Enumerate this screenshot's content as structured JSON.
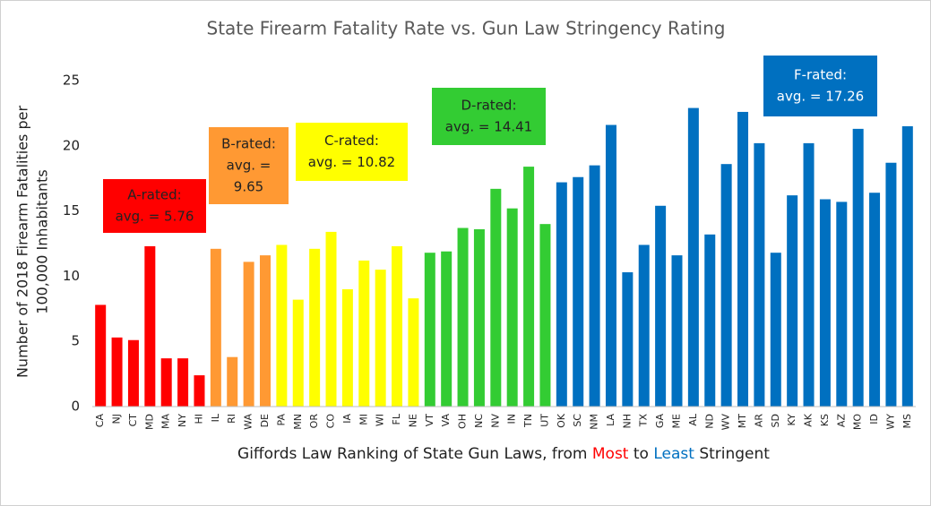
{
  "chart_data": {
    "type": "bar",
    "title": "State Firearm Fatality Rate vs. Gun Law Stringency Rating",
    "y_label": [
      "Number of 2018 Firearm Fatalities per",
      "100,000 Inhabitants"
    ],
    "x_label_parts": [
      {
        "text": "Giffords Law Ranking of State Gun Laws, from ",
        "color": "#222222"
      },
      {
        "text": "Most",
        "color": "#ff0000"
      },
      {
        "text": " to ",
        "color": "#222222"
      },
      {
        "text": "Least",
        "color": "#0070c0"
      },
      {
        "text": " Stringent",
        "color": "#222222"
      }
    ],
    "categories": [
      "CA",
      "NJ",
      "CT",
      "MD",
      "MA",
      "NY",
      "HI",
      "IL",
      "RI",
      "WA",
      "DE",
      "PA",
      "MN",
      "OR",
      "CO",
      "IA",
      "MI",
      "WI",
      "FL",
      "NE",
      "VT",
      "VA",
      "OH",
      "NC",
      "NV",
      "IN",
      "TN",
      "UT",
      "OK",
      "SC",
      "NM",
      "LA",
      "NH",
      "TX",
      "GA",
      "ME",
      "AL",
      "ND",
      "WV",
      "MT",
      "AR",
      "SD",
      "KY",
      "AK",
      "KS",
      "AZ",
      "MO",
      "ID",
      "WY",
      "MS"
    ],
    "values": [
      7.8,
      5.3,
      5.1,
      12.3,
      3.7,
      3.7,
      2.4,
      12.1,
      3.8,
      11.1,
      11.6,
      12.4,
      8.2,
      12.1,
      13.4,
      9.0,
      11.2,
      10.5,
      12.3,
      8.3,
      11.8,
      11.9,
      13.7,
      13.6,
      16.7,
      15.2,
      18.4,
      14.0,
      17.2,
      17.6,
      18.5,
      21.6,
      10.3,
      12.4,
      15.4,
      11.6,
      22.9,
      13.2,
      18.6,
      22.6,
      20.2,
      11.8,
      16.2,
      20.2,
      15.9,
      15.7,
      21.3,
      16.4,
      18.7,
      21.5
    ],
    "colors": [
      "#ff0000",
      "#ff0000",
      "#ff0000",
      "#ff0000",
      "#ff0000",
      "#ff0000",
      "#ff0000",
      "#ff9933",
      "#ff9933",
      "#ff9933",
      "#ff9933",
      "#ffff00",
      "#ffff00",
      "#ffff00",
      "#ffff00",
      "#ffff00",
      "#ffff00",
      "#ffff00",
      "#ffff00",
      "#ffff00",
      "#33cc33",
      "#33cc33",
      "#33cc33",
      "#33cc33",
      "#33cc33",
      "#33cc33",
      "#33cc33",
      "#33cc33",
      "#0070c0",
      "#0070c0",
      "#0070c0",
      "#0070c0",
      "#0070c0",
      "#0070c0",
      "#0070c0",
      "#0070c0",
      "#0070c0",
      "#0070c0",
      "#0070c0",
      "#0070c0",
      "#0070c0",
      "#0070c0",
      "#0070c0",
      "#0070c0",
      "#0070c0",
      "#0070c0",
      "#0070c0",
      "#0070c0",
      "#0070c0",
      "#0070c0"
    ],
    "ylim": [
      0,
      25
    ],
    "yticks": [
      0,
      5,
      10,
      15,
      20,
      25
    ],
    "grid": false,
    "annotations": [
      {
        "lines": [
          "A-rated:",
          "avg. = 5.76"
        ],
        "color": "#ff0000",
        "text_color": "#222222"
      },
      {
        "lines": [
          "B-rated:",
          "avg. =",
          "9.65"
        ],
        "color": "#ff9933",
        "text_color": "#222222"
      },
      {
        "lines": [
          "C-rated:",
          "avg. = 10.82"
        ],
        "color": "#ffff00",
        "text_color": "#222222"
      },
      {
        "lines": [
          "D-rated:",
          "avg. = 14.41"
        ],
        "color": "#33cc33",
        "text_color": "#222222"
      },
      {
        "lines": [
          "F-rated:",
          "avg. = 17.26"
        ],
        "color": "#0070c0",
        "text_color": "#ffffff"
      }
    ]
  }
}
